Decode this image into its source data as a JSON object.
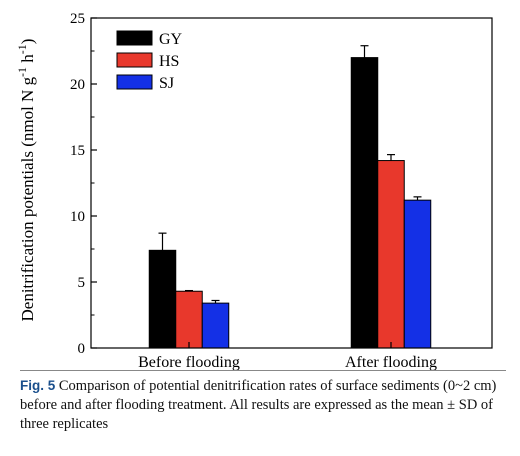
{
  "chart_data": {
    "type": "bar",
    "ylabel_main": "Denitrification potentials (nmol N g",
    "ylabel_sup1": "-1",
    "ylabel_mid": " h",
    "ylabel_sup2": "-1",
    "ylabel_end": ")",
    "categories": [
      "Before flooding",
      "After flooding"
    ],
    "ylim": [
      0,
      25
    ],
    "yticks": [
      "0",
      "5",
      "10",
      "15",
      "20",
      "25"
    ],
    "legend_position": "top-left",
    "series": [
      {
        "name": "GY",
        "color": "#000000",
        "values": [
          7.4,
          22.0
        ],
        "errors": [
          1.3,
          0.9
        ]
      },
      {
        "name": "HS",
        "color": "#e8382c",
        "values": [
          4.3,
          14.2
        ],
        "errors": [
          0.05,
          0.45
        ]
      },
      {
        "name": "SJ",
        "color": "#1430e6",
        "values": [
          3.4,
          11.2
        ],
        "errors": [
          0.2,
          0.25
        ]
      }
    ]
  },
  "caption": {
    "label": "Fig. 5",
    "text": "Comparison of potential denitrification rates of surface sediments (0~2 cm) before and after flooding treatment. All results are expressed as the mean ± SD of three replicates"
  }
}
